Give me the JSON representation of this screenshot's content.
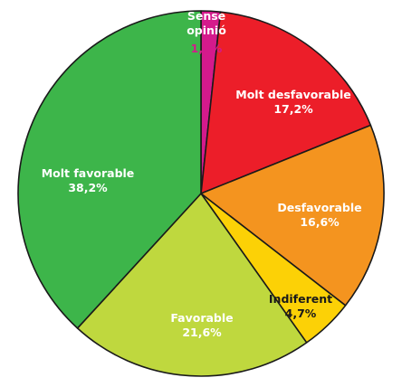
{
  "chart_data": {
    "type": "pie",
    "start_angle_deg": 0,
    "direction": "clockwise",
    "slices": [
      {
        "label": "Sense opinió",
        "lines": [
          "Sense",
          "opinió"
        ],
        "value": 1.7,
        "value_label": "1,7%",
        "color": "#d41a8c",
        "text_color": "#ffffff",
        "value_color": "#d41a8c"
      },
      {
        "label": "Molt desfavorable",
        "lines": [
          "Molt desfavorable"
        ],
        "value": 17.2,
        "value_label": "17,2%",
        "color": "#ec1e29",
        "text_color": "#ffffff",
        "value_color": "#ffffff"
      },
      {
        "label": "Desfavorable",
        "lines": [
          "Desfavorable"
        ],
        "value": 16.6,
        "value_label": "16,6%",
        "color": "#f4941f",
        "text_color": "#ffffff",
        "value_color": "#ffffff"
      },
      {
        "label": "Indiferent",
        "lines": [
          "Indiferent"
        ],
        "value": 4.7,
        "value_label": "4,7%",
        "color": "#fcd106",
        "text_color": "#1a1a1a",
        "value_color": "#1a1a1a"
      },
      {
        "label": "Favorable",
        "lines": [
          "Favorable"
        ],
        "value": 21.6,
        "value_label": "21,6%",
        "color": "#bfd83e",
        "text_color": "#ffffff",
        "value_color": "#ffffff"
      },
      {
        "label": "Molt favorable",
        "lines": [
          "Molt favorable"
        ],
        "value": 38.2,
        "value_label": "38,2%",
        "color": "#3db54a",
        "text_color": "#ffffff",
        "value_color": "#ffffff"
      }
    ]
  }
}
